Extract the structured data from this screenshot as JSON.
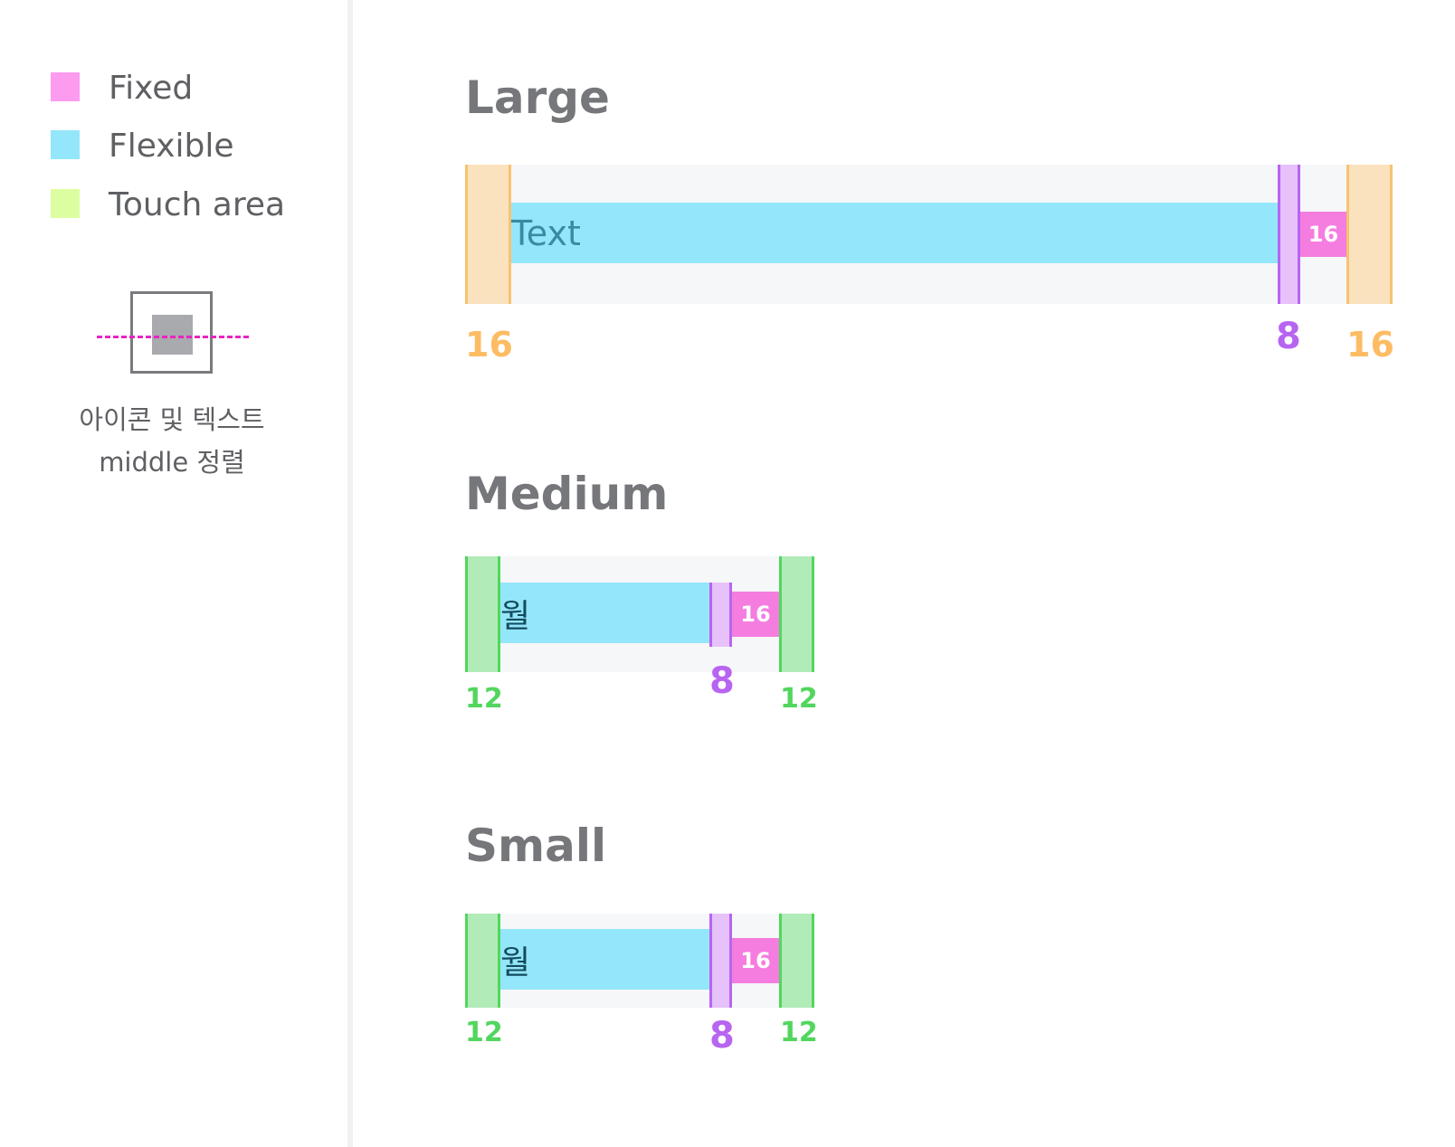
{
  "legend": {
    "items": [
      {
        "label": "Fixed",
        "color": "#fd9bef"
      },
      {
        "label": "Flexible",
        "color": "#94e6fa"
      },
      {
        "label": "Touch area",
        "color": "#ddfea0"
      }
    ],
    "alignment_caption": [
      "아이콘 및 텍스트",
      "middle 정렬"
    ]
  },
  "sections": [
    {
      "title": "Large",
      "text": "Text",
      "icon_size": "16",
      "padding_left": "16",
      "gap": "8",
      "padding_right": "16"
    },
    {
      "title": "Medium",
      "text": "월",
      "icon_size": "16",
      "padding_left": "12",
      "gap": "8",
      "padding_right": "12"
    },
    {
      "title": "Small",
      "text": "월",
      "icon_size": "16",
      "padding_left": "12",
      "gap": "8",
      "padding_right": "12"
    }
  ],
  "colors": {
    "fixed": "#f57de0",
    "flexible": "#94e6fa",
    "padding_large": "#f9c271",
    "padding_small": "#52d65e",
    "gap": "#b765f0",
    "alignment_line": "#ea24c0"
  }
}
